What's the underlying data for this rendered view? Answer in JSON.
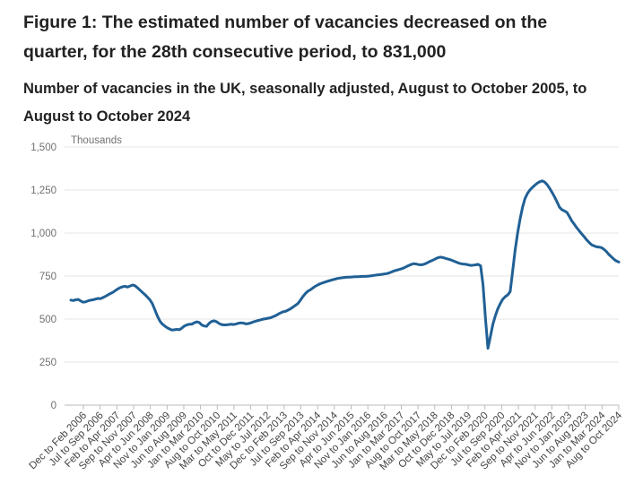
{
  "figure": {
    "title": "Figure 1: The estimated number of vacancies decreased on the quarter, for the 28th consecutive period, to 831,000",
    "subtitle": "Number of vacancies in the UK, seasonally adjusted, August to October 2005, to August to October 2024"
  },
  "chart_data": {
    "type": "line",
    "title": "Figure 1: The estimated number of vacancies decreased on the quarter, for the 28th consecutive period, to 831,000",
    "subtitle": "Number of vacancies in the UK, seasonally adjusted, August to October 2005, to August to October 2024",
    "ylabel": "Thousands",
    "ylim": [
      0,
      1500
    ],
    "yticks": [
      0,
      250,
      500,
      750,
      1000,
      1250,
      1500
    ],
    "ytick_labels": [
      "0",
      "250",
      "500",
      "750",
      "1,000",
      "1,250",
      "1,500"
    ],
    "x_tick_labels": [
      "Dec to Feb 2006",
      "Jul to Sep 2006",
      "Feb to Apr 2007",
      "Sep to Nov 2007",
      "Apr to Jun 2008",
      "Nov to Jan 2009",
      "Jun to Aug 2009",
      "Jan to Mar 2010",
      "Aug to Oct 2010",
      "Mar to May 2011",
      "Oct to Dec 2011",
      "May to Jul 2012",
      "Dec to Feb 2013",
      "Jul to Sep 2013",
      "Feb to Apr 2014",
      "Sep to Nov 2014",
      "Apr to Jun 2015",
      "Nov to Jan 2016",
      "Jun to Aug 2016",
      "Jan to Mar 2017",
      "Aug to Oct 2017",
      "Mar to May 2018",
      "Oct to Dec 2018",
      "May to Jul 2019",
      "Dec to Feb 2020",
      "Jul to Sep 2020",
      "Feb to Apr 2021",
      "Sep to Nov 2021",
      "Apr to Jun 2022",
      "Nov to Jan 2023",
      "Jun to Aug 2023",
      "Jan to Mar 2024",
      "Aug to Oct 2024"
    ],
    "grid": true,
    "color": "#206095",
    "series": [
      {
        "values": [
          610,
          608,
          612,
          614,
          605,
          598,
          600,
          606,
          610,
          612,
          616,
          620,
          618,
          625,
          632,
          640,
          648,
          655,
          665,
          675,
          683,
          688,
          690,
          686,
          692,
          698,
          694,
          682,
          668,
          655,
          642,
          628,
          612,
          590,
          555,
          520,
          490,
          472,
          460,
          450,
          442,
          436,
          438,
          440,
          438,
          448,
          460,
          466,
          470,
          470,
          478,
          484,
          480,
          466,
          460,
          458,
          475,
          486,
          490,
          485,
          475,
          468,
          466,
          466,
          468,
          470,
          468,
          472,
          476,
          478,
          476,
          472,
          474,
          478,
          484,
          488,
          492,
          496,
          500,
          502,
          505,
          508,
          514,
          520,
          528,
          536,
          542,
          545,
          552,
          560,
          570,
          580,
          590,
          610,
          630,
          648,
          662,
          670,
          680,
          690,
          698,
          705,
          710,
          715,
          720,
          724,
          728,
          732,
          736,
          738,
          740,
          742,
          744,
          744,
          745,
          746,
          746,
          747,
          748,
          748,
          749,
          750,
          752,
          754,
          756,
          758,
          760,
          762,
          764,
          768,
          774,
          780,
          784,
          788,
          792,
          798,
          805,
          812,
          818,
          822,
          820,
          816,
          815,
          818,
          824,
          832,
          838,
          845,
          852,
          858,
          860,
          856,
          852,
          848,
          844,
          838,
          832,
          826,
          822,
          820,
          818,
          815,
          812,
          813,
          815,
          818,
          810,
          700,
          500,
          330,
          400,
          470,
          520,
          560,
          590,
          615,
          630,
          640,
          660,
          780,
          900,
          1000,
          1080,
          1150,
          1200,
          1230,
          1250,
          1265,
          1278,
          1290,
          1298,
          1303,
          1296,
          1280,
          1260,
          1235,
          1210,
          1180,
          1150,
          1135,
          1128,
          1120,
          1095,
          1070,
          1050,
          1030,
          1012,
          995,
          978,
          960,
          945,
          932,
          925,
          920,
          918,
          915,
          905,
          892,
          875,
          862,
          848,
          838,
          831
        ]
      }
    ]
  }
}
